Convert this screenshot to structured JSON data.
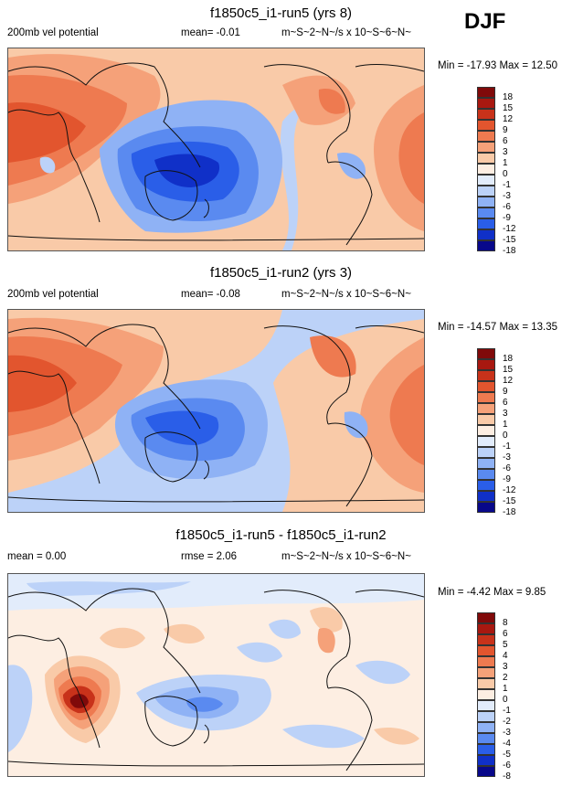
{
  "season": "DJF",
  "colors": {
    "scale_9_plus": [
      "#08088a",
      "#1030c8",
      "#2a5ee8",
      "#5a8af0",
      "#8fb2f5",
      "#bcd2f8",
      "#e2ecfb",
      "#fdeee2",
      "#f9caa8",
      "#f5a179",
      "#ee7a50",
      "#e2552e",
      "#c8321a",
      "#a81810",
      "#800a0a"
    ],
    "diff_scale": [
      "#08088a",
      "#1030c8",
      "#2a5ee8",
      "#5a8af0",
      "#8fb2f5",
      "#bcd2f8",
      "#e2ecfb",
      "#fdeee2",
      "#f9caa8",
      "#f5a179",
      "#ee7a50",
      "#e2552e",
      "#c8321a",
      "#a81810",
      "#800a0a"
    ]
  },
  "panels": [
    {
      "title": "f1850c5_i1-run5 (yrs 8)",
      "left_label": "200mb vel potential",
      "mean": "mean=  -0.01",
      "units": "m~S~2~N~/s x 10~S~6~N~",
      "minmax": "Min = -17.93 Max =  12.50",
      "levels": [
        "18",
        "15",
        "12",
        "9",
        "6",
        "3",
        "1",
        "0",
        "-1",
        "-3",
        "-6",
        "-9",
        "-12",
        "-15",
        "-18"
      ]
    },
    {
      "title": "f1850c5_i1-run2 (yrs 3)",
      "left_label": "200mb vel potential",
      "mean": "mean=  -0.08",
      "units": "m~S~2~N~/s x 10~S~6~N~",
      "minmax": "Min = -14.57 Max =  13.35",
      "levels": [
        "18",
        "15",
        "12",
        "9",
        "6",
        "3",
        "1",
        "0",
        "-1",
        "-3",
        "-6",
        "-9",
        "-12",
        "-15",
        "-18"
      ]
    },
    {
      "title": "f1850c5_i1-run5 - f1850c5_i1-run2",
      "left_label": "mean =  0.00",
      "mean": "rmse =   2.06",
      "units": "m~S~2~N~/s x 10~S~6~N~",
      "minmax": "Min =  -4.42 Max =   9.85",
      "levels": [
        "8",
        "6",
        "5",
        "4",
        "3",
        "2",
        "1",
        "0",
        "-1",
        "-2",
        "-3",
        "-4",
        "-5",
        "-6",
        "-8"
      ]
    }
  ],
  "chart_data": {
    "type": "heatmap",
    "variable": "200mb vel potential",
    "season": "DJF",
    "maps": [
      {
        "name": "f1850c5_i1-run5 (yrs 8)",
        "min": -17.93,
        "max": 12.5,
        "mean": -0.01,
        "contour_levels": [
          -18,
          -15,
          -12,
          -9,
          -6,
          -3,
          -1,
          0,
          1,
          3,
          6,
          9,
          12,
          15,
          18
        ]
      },
      {
        "name": "f1850c5_i1-run2 (yrs 3)",
        "min": -14.57,
        "max": 13.35,
        "mean": -0.08,
        "contour_levels": [
          -18,
          -15,
          -12,
          -9,
          -6,
          -3,
          -1,
          0,
          1,
          3,
          6,
          9,
          12,
          15,
          18
        ]
      },
      {
        "name": "f1850c5_i1-run5 - f1850c5_i1-run2",
        "min": -4.42,
        "max": 9.85,
        "mean": 0.0,
        "rmse": 2.06,
        "contour_levels": [
          -8,
          -6,
          -5,
          -4,
          -3,
          -2,
          -1,
          0,
          1,
          2,
          3,
          4,
          5,
          6,
          8
        ]
      }
    ]
  }
}
